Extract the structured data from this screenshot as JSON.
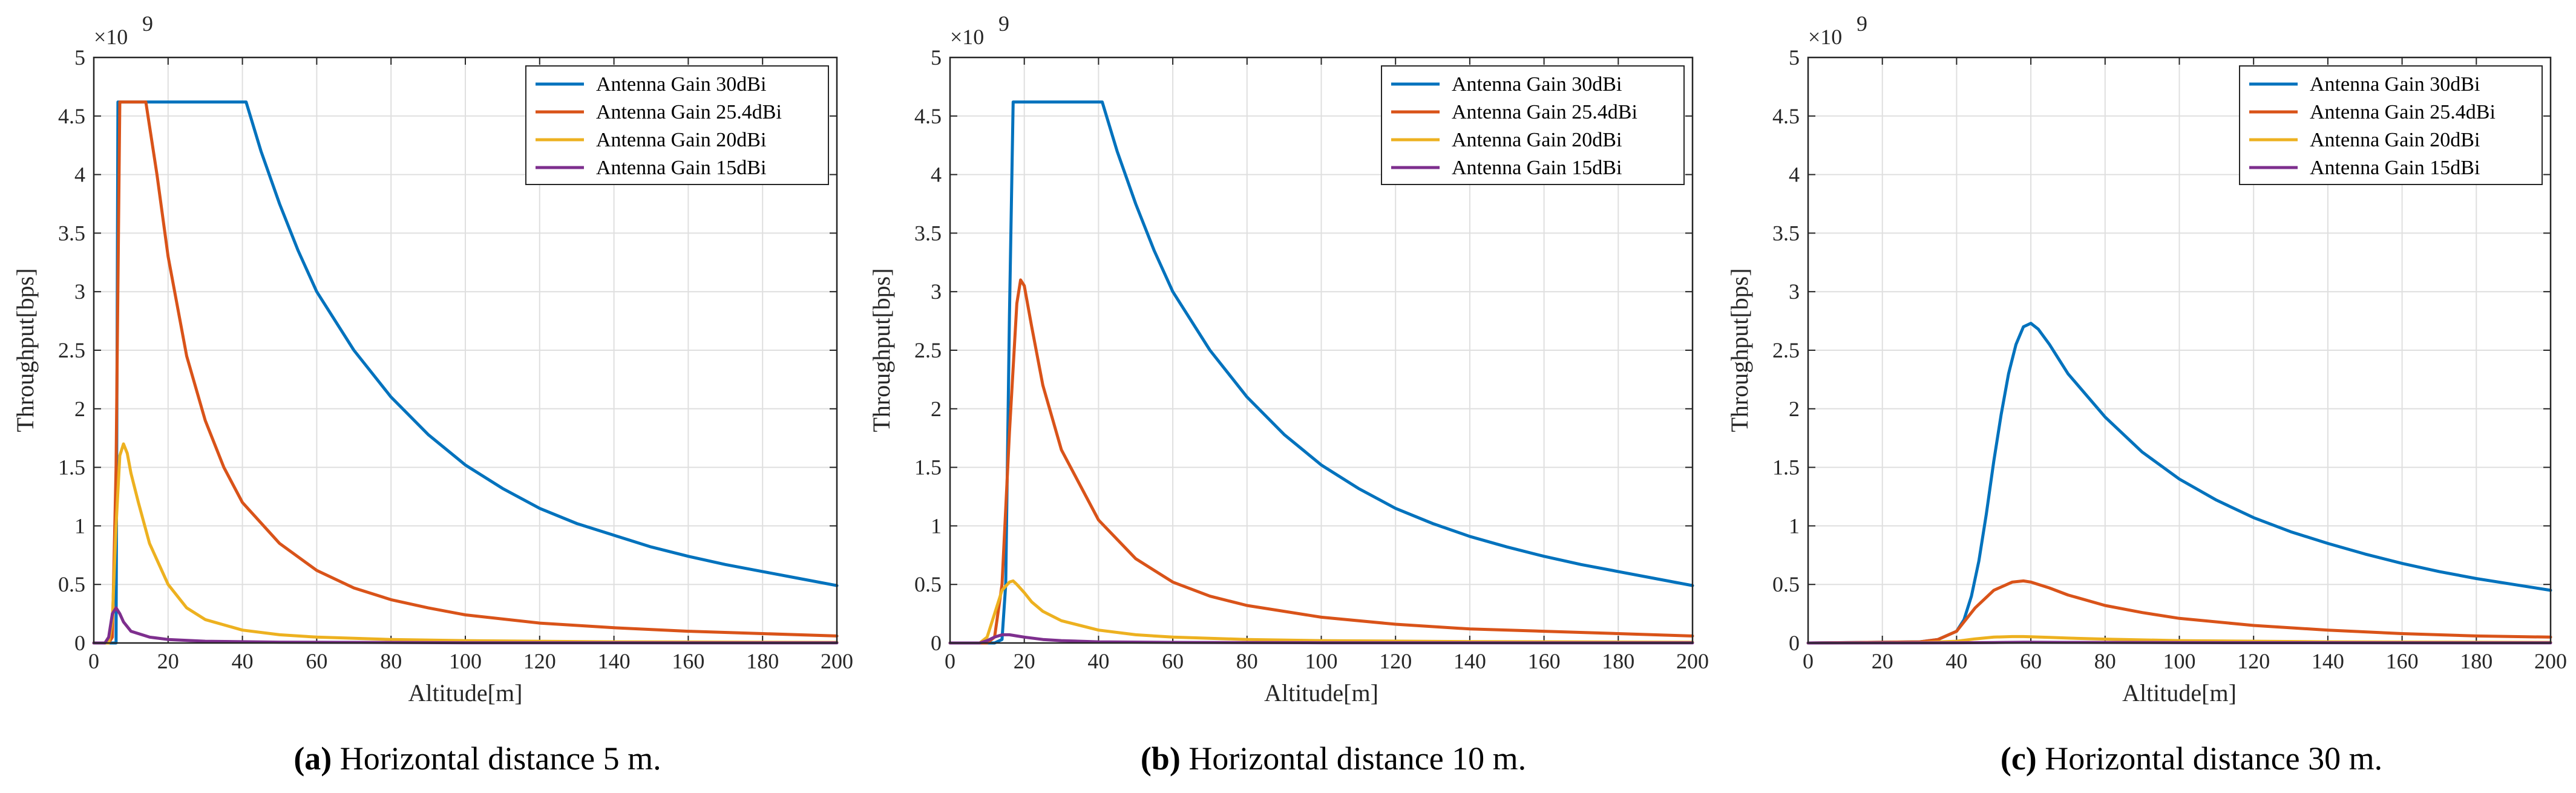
{
  "chart_data": [
    {
      "type": "line",
      "panel_label": "(a)",
      "caption": "Horizontal distance 5 m.",
      "xlabel": "Altitude[m]",
      "ylabel": "Throughput[bps]",
      "y_multiplier": "×10",
      "y_multiplier_exp": "9",
      "xlim": [
        0,
        200
      ],
      "ylim": [
        0,
        5
      ],
      "xticks": [
        "0",
        "20",
        "40",
        "60",
        "80",
        "100",
        "120",
        "140",
        "160",
        "180",
        "200"
      ],
      "yticks": [
        "0",
        "0.5",
        "1",
        "1.5",
        "2",
        "2.5",
        "3",
        "3.5",
        "4",
        "4.5",
        "5"
      ],
      "grid": true,
      "legend_position": "top-right",
      "series": [
        {
          "name": "Antenna Gain 30dBi",
          "color": "#0072BD",
          "x": [
            0,
            5,
            6,
            6.5,
            7,
            8,
            20,
            41,
            45,
            50,
            55,
            60,
            70,
            80,
            90,
            100,
            110,
            120,
            130,
            140,
            150,
            160,
            170,
            180,
            190,
            200
          ],
          "y": [
            0,
            0,
            0,
            4.62,
            4.62,
            4.62,
            4.62,
            4.62,
            4.2,
            3.75,
            3.35,
            3.0,
            2.5,
            2.1,
            1.78,
            1.52,
            1.32,
            1.15,
            1.02,
            0.92,
            0.82,
            0.74,
            0.67,
            0.61,
            0.55,
            0.49
          ]
        },
        {
          "name": "Antenna Gain 25.4dBi",
          "color": "#D95319",
          "x": [
            0,
            4,
            5,
            6,
            7,
            8,
            14,
            17,
            20,
            25,
            30,
            35,
            40,
            50,
            60,
            70,
            80,
            90,
            100,
            120,
            140,
            160,
            180,
            200
          ],
          "y": [
            0,
            0,
            0.05,
            1.5,
            4.62,
            4.62,
            4.62,
            4.0,
            3.3,
            2.45,
            1.9,
            1.5,
            1.2,
            0.85,
            0.62,
            0.47,
            0.37,
            0.3,
            0.24,
            0.17,
            0.13,
            0.1,
            0.08,
            0.06
          ]
        },
        {
          "name": "Antenna Gain 20dBi",
          "color": "#EDB120",
          "x": [
            0,
            4,
            5,
            6,
            7,
            8,
            9,
            10,
            12,
            15,
            20,
            25,
            30,
            40,
            50,
            60,
            80,
            100,
            140,
            200
          ],
          "y": [
            0,
            0,
            0.2,
            1.0,
            1.6,
            1.7,
            1.62,
            1.45,
            1.2,
            0.85,
            0.5,
            0.3,
            0.2,
            0.11,
            0.07,
            0.05,
            0.03,
            0.02,
            0.01,
            0.005
          ]
        },
        {
          "name": "Antenna Gain 15dBi",
          "color": "#7E2F8E",
          "x": [
            0,
            3,
            4,
            5,
            6,
            7,
            8,
            10,
            15,
            20,
            30,
            50,
            100,
            200
          ],
          "y": [
            0,
            0,
            0.05,
            0.25,
            0.3,
            0.25,
            0.18,
            0.1,
            0.05,
            0.03,
            0.015,
            0.007,
            0.002,
            0.001
          ]
        }
      ]
    },
    {
      "type": "line",
      "panel_label": "(b)",
      "caption": "Horizontal distance 10 m.",
      "xlabel": "Altitude[m]",
      "ylabel": "Throughput[bps]",
      "y_multiplier": "×10",
      "y_multiplier_exp": "9",
      "xlim": [
        0,
        200
      ],
      "ylim": [
        0,
        5
      ],
      "xticks": [
        "0",
        "20",
        "40",
        "60",
        "80",
        "100",
        "120",
        "140",
        "160",
        "180",
        "200"
      ],
      "yticks": [
        "0",
        "0.5",
        "1",
        "1.5",
        "2",
        "2.5",
        "3",
        "3.5",
        "4",
        "4.5",
        "5"
      ],
      "grid": true,
      "legend_position": "top-right",
      "series": [
        {
          "name": "Antenna Gain 30dBi",
          "color": "#0072BD",
          "x": [
            0,
            12,
            14,
            15,
            16,
            17,
            18,
            30,
            41,
            45,
            50,
            55,
            60,
            70,
            80,
            90,
            100,
            110,
            120,
            130,
            140,
            150,
            160,
            170,
            180,
            190,
            200
          ],
          "y": [
            0,
            0,
            0.03,
            0.5,
            2.8,
            4.62,
            4.62,
            4.62,
            4.62,
            4.2,
            3.75,
            3.35,
            3.0,
            2.5,
            2.1,
            1.78,
            1.52,
            1.32,
            1.15,
            1.02,
            0.91,
            0.82,
            0.74,
            0.67,
            0.61,
            0.55,
            0.49
          ]
        },
        {
          "name": "Antenna Gain 25.4dBi",
          "color": "#D95319",
          "x": [
            0,
            10,
            12,
            14,
            16,
            18,
            19,
            20,
            22,
            25,
            30,
            40,
            50,
            60,
            70,
            80,
            100,
            120,
            140,
            160,
            180,
            200
          ],
          "y": [
            0,
            0,
            0.05,
            0.5,
            1.8,
            2.9,
            3.1,
            3.05,
            2.7,
            2.2,
            1.65,
            1.05,
            0.72,
            0.52,
            0.4,
            0.32,
            0.22,
            0.16,
            0.12,
            0.1,
            0.08,
            0.06
          ]
        },
        {
          "name": "Antenna Gain 20dBi",
          "color": "#EDB120",
          "x": [
            0,
            8,
            10,
            12,
            14,
            16,
            17,
            18,
            20,
            22,
            25,
            30,
            40,
            50,
            60,
            80,
            100,
            140,
            200
          ],
          "y": [
            0,
            0,
            0.05,
            0.25,
            0.45,
            0.52,
            0.53,
            0.5,
            0.43,
            0.35,
            0.27,
            0.19,
            0.11,
            0.07,
            0.05,
            0.03,
            0.02,
            0.012,
            0.006
          ]
        },
        {
          "name": "Antenna Gain 15dBi",
          "color": "#7E2F8E",
          "x": [
            0,
            8,
            10,
            12,
            14,
            16,
            18,
            20,
            25,
            30,
            40,
            60,
            100,
            200
          ],
          "y": [
            0,
            0,
            0.02,
            0.05,
            0.07,
            0.07,
            0.06,
            0.05,
            0.03,
            0.02,
            0.01,
            0.005,
            0.002,
            0.001
          ]
        }
      ]
    },
    {
      "type": "line",
      "panel_label": "(c)",
      "caption": "Horizontal distance 30 m.",
      "xlabel": "Altitude[m]",
      "ylabel": "Throughput[bps]",
      "y_multiplier": "×10",
      "y_multiplier_exp": "9",
      "xlim": [
        0,
        200
      ],
      "ylim": [
        0,
        5
      ],
      "xticks": [
        "0",
        "20",
        "40",
        "60",
        "80",
        "100",
        "120",
        "140",
        "160",
        "180",
        "200"
      ],
      "yticks": [
        "0",
        "0.5",
        "1",
        "1.5",
        "2",
        "2.5",
        "3",
        "3.5",
        "4",
        "4.5",
        "5"
      ],
      "grid": true,
      "legend_position": "top-right",
      "series": [
        {
          "name": "Antenna Gain 30dBi",
          "color": "#0072BD",
          "x": [
            0,
            30,
            35,
            40,
            42,
            44,
            46,
            48,
            50,
            52,
            54,
            56,
            58,
            60,
            62,
            65,
            70,
            80,
            90,
            100,
            110,
            120,
            130,
            140,
            150,
            160,
            170,
            180,
            190,
            200
          ],
          "y": [
            0,
            0.01,
            0.03,
            0.1,
            0.2,
            0.4,
            0.7,
            1.1,
            1.55,
            1.95,
            2.3,
            2.55,
            2.7,
            2.73,
            2.68,
            2.55,
            2.3,
            1.93,
            1.63,
            1.4,
            1.22,
            1.07,
            0.95,
            0.85,
            0.76,
            0.68,
            0.61,
            0.55,
            0.5,
            0.45
          ]
        },
        {
          "name": "Antenna Gain 25.4dBi",
          "color": "#D95319",
          "x": [
            0,
            30,
            35,
            40,
            45,
            50,
            55,
            58,
            60,
            65,
            70,
            80,
            90,
            100,
            120,
            140,
            160,
            180,
            200
          ],
          "y": [
            0,
            0.01,
            0.03,
            0.1,
            0.3,
            0.45,
            0.52,
            0.53,
            0.52,
            0.47,
            0.41,
            0.32,
            0.26,
            0.21,
            0.15,
            0.11,
            0.08,
            0.06,
            0.05
          ]
        },
        {
          "name": "Antenna Gain 20dBi",
          "color": "#EDB120",
          "x": [
            0,
            30,
            40,
            45,
            50,
            55,
            58,
            60,
            65,
            70,
            80,
            100,
            140,
            200
          ],
          "y": [
            0,
            0.003,
            0.015,
            0.035,
            0.05,
            0.055,
            0.055,
            0.053,
            0.048,
            0.042,
            0.033,
            0.02,
            0.01,
            0.005
          ]
        },
        {
          "name": "Antenna Gain 15dBi",
          "color": "#7E2F8E",
          "x": [
            0,
            40,
            50,
            58,
            60,
            70,
            100,
            200
          ],
          "y": [
            0,
            0.002,
            0.004,
            0.006,
            0.006,
            0.005,
            0.003,
            0.001
          ]
        }
      ]
    }
  ]
}
